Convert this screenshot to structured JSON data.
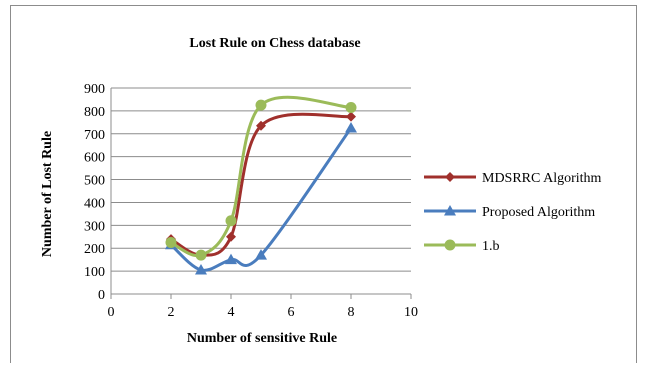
{
  "chart_data": {
    "type": "line",
    "title": "Lost Rule on Chess database",
    "xlabel": "Number of sensitive Rule",
    "ylabel": "Number of Lost Rule",
    "xlim": [
      0,
      10
    ],
    "ylim": [
      0,
      900
    ],
    "xticks": [
      0,
      2,
      4,
      6,
      8,
      10
    ],
    "yticks": [
      0,
      100,
      200,
      300,
      400,
      500,
      600,
      700,
      800,
      900
    ],
    "grid": "horizontal",
    "smooth": true,
    "legend_position": "right",
    "series": [
      {
        "name": "MDSRRC Algorithm",
        "color": "#a0302c",
        "marker": "diamond",
        "x": [
          2,
          3,
          4,
          5,
          8
        ],
        "y": [
          240,
          170,
          250,
          735,
          775
        ]
      },
      {
        "name": "Proposed Algorithm",
        "color": "#4a7dbe",
        "marker": "triangle",
        "x": [
          2,
          3,
          4,
          5,
          8
        ],
        "y": [
          215,
          105,
          150,
          170,
          725
        ]
      },
      {
        "name": "1.b",
        "color": "#9bbb59",
        "marker": "circle",
        "x": [
          2,
          3,
          4,
          5,
          8
        ],
        "y": [
          225,
          170,
          320,
          825,
          815
        ]
      }
    ]
  }
}
